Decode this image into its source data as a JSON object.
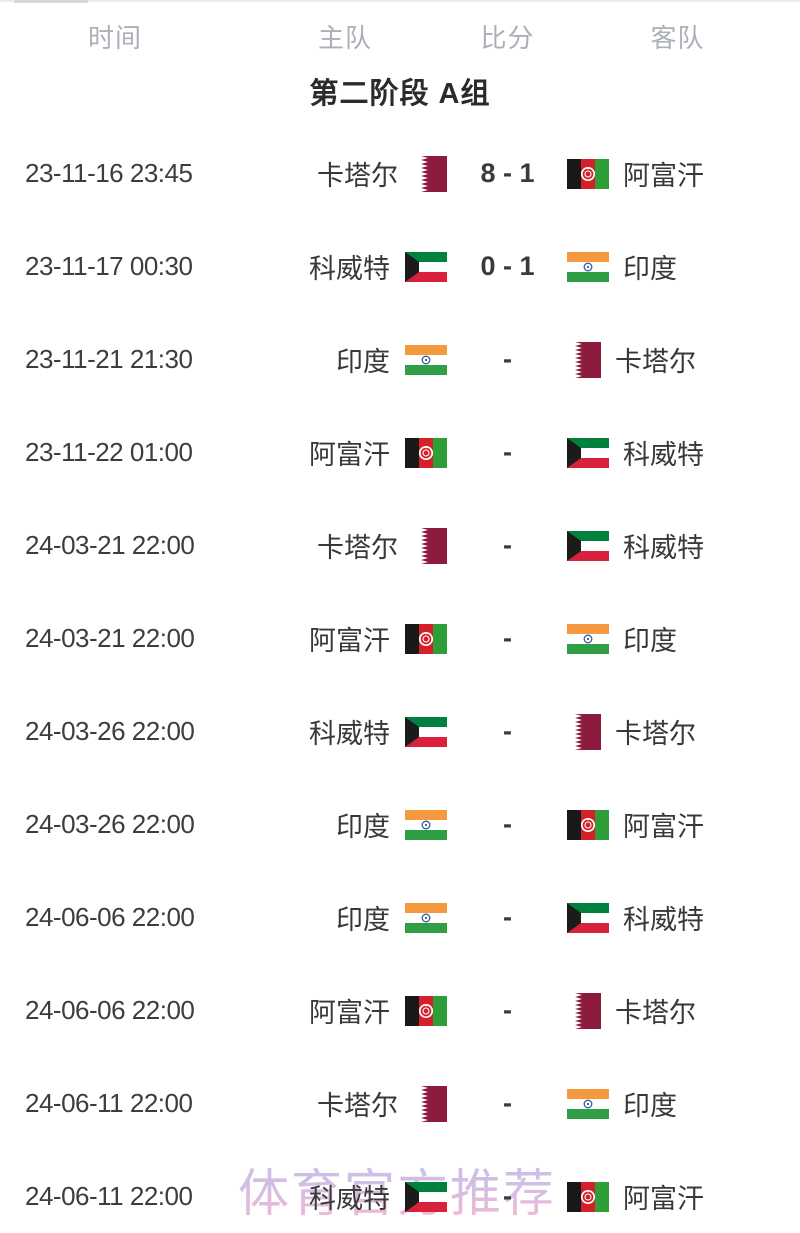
{
  "table": {
    "headers": [
      {
        "label": "时间"
      },
      {
        "label": "主队"
      },
      {
        "label": "比分"
      },
      {
        "label": "客队"
      }
    ],
    "stage_title": "第二阶段 A组",
    "rows": [
      {
        "time": "23-11-16 23:45",
        "home": "卡塔尔",
        "home_flag": "qatar",
        "score": "8 - 1",
        "away": "阿富汗",
        "away_flag": "afghanistan"
      },
      {
        "time": "23-11-17 00:30",
        "home": "科威特",
        "home_flag": "kuwait",
        "score": "0 - 1",
        "away": "印度",
        "away_flag": "india"
      },
      {
        "time": "23-11-21 21:30",
        "home": "印度",
        "home_flag": "india",
        "score": "-",
        "away": "卡塔尔",
        "away_flag": "qatar"
      },
      {
        "time": "23-11-22 01:00",
        "home": "阿富汗",
        "home_flag": "afghanistan",
        "score": "-",
        "away": "科威特",
        "away_flag": "kuwait"
      },
      {
        "time": "24-03-21 22:00",
        "home": "卡塔尔",
        "home_flag": "qatar",
        "score": "-",
        "away": "科威特",
        "away_flag": "kuwait"
      },
      {
        "time": "24-03-21 22:00",
        "home": "阿富汗",
        "home_flag": "afghanistan",
        "score": "-",
        "away": "印度",
        "away_flag": "india"
      },
      {
        "time": "24-03-26 22:00",
        "home": "科威特",
        "home_flag": "kuwait",
        "score": "-",
        "away": "卡塔尔",
        "away_flag": "qatar"
      },
      {
        "time": "24-03-26 22:00",
        "home": "印度",
        "home_flag": "india",
        "score": "-",
        "away": "阿富汗",
        "away_flag": "afghanistan"
      },
      {
        "time": "24-06-06 22:00",
        "home": "印度",
        "home_flag": "india",
        "score": "-",
        "away": "科威特",
        "away_flag": "kuwait"
      },
      {
        "time": "24-06-06 22:00",
        "home": "阿富汗",
        "home_flag": "afghanistan",
        "score": "-",
        "away": "卡塔尔",
        "away_flag": "qatar"
      },
      {
        "time": "24-06-11 22:00",
        "home": "卡塔尔",
        "home_flag": "qatar",
        "score": "-",
        "away": "印度",
        "away_flag": "india"
      },
      {
        "time": "24-06-11 22:00",
        "home": "科威特",
        "home_flag": "kuwait",
        "score": "-",
        "away": "阿富汗",
        "away_flag": "afghanistan"
      }
    ]
  },
  "watermark": "体育官方推荐",
  "colors": {
    "header_text": "#abb0b8",
    "title_text": "#2b2b2b",
    "row_text": "#3d3d3d",
    "score_text": "#3a3a3a",
    "watermark_top": "#b6b3e9",
    "watermark_bottom": "#f3a7c6",
    "qatar_maroon": "#8d1b3d",
    "kuwait_green": "#00823e",
    "kuwait_red": "#d8213a",
    "kuwait_black": "#1b1b1b",
    "india_saffron": "#f5993e",
    "india_green": "#2f9e44",
    "india_navy": "#3b5aa0",
    "afghan_black": "#181818",
    "afghan_red": "#d32029",
    "afghan_green": "#2e9e38"
  }
}
